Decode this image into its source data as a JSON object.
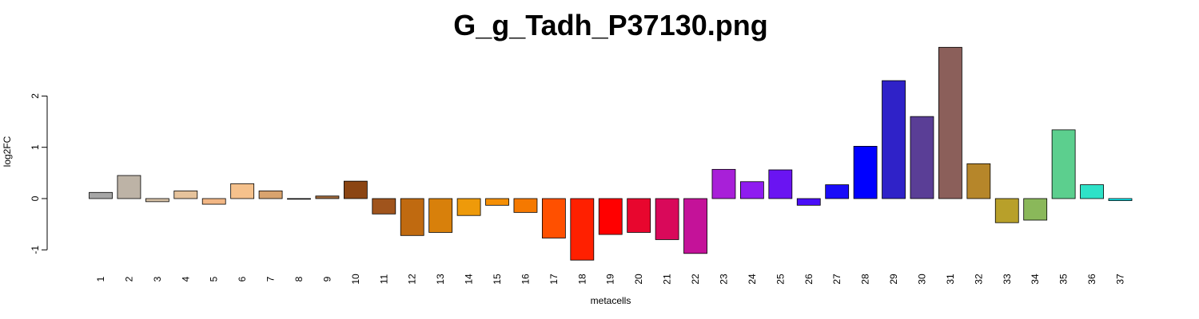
{
  "chart_data": {
    "type": "bar",
    "title": "G_g_Tadh_P37130.png",
    "xlabel": "metacells",
    "ylabel": "log2FC",
    "ylim": [
      -1.2,
      3.0
    ],
    "yticks": [
      -1,
      0,
      1,
      2
    ],
    "categories": [
      "1",
      "2",
      "3",
      "4",
      "5",
      "6",
      "7",
      "8",
      "9",
      "10",
      "11",
      "12",
      "13",
      "14",
      "15",
      "16",
      "17",
      "18",
      "19",
      "20",
      "21",
      "22",
      "23",
      "24",
      "25",
      "26",
      "27",
      "28",
      "29",
      "30",
      "31",
      "32",
      "33",
      "34",
      "35",
      "36",
      "37"
    ],
    "values": [
      0.12,
      0.45,
      -0.06,
      0.15,
      -0.11,
      0.29,
      0.15,
      -0.01,
      0.05,
      0.34,
      -0.3,
      -0.72,
      -0.66,
      -0.33,
      -0.13,
      -0.27,
      -0.77,
      -1.2,
      -0.7,
      -0.66,
      -0.8,
      -1.07,
      0.57,
      0.33,
      0.56,
      -0.13,
      0.27,
      1.02,
      2.3,
      1.6,
      2.95,
      0.68,
      -0.47,
      -0.42,
      1.34,
      0.27,
      -0.04
    ],
    "colors": [
      "#a6a6a6",
      "#bdb3a6",
      "#d7c2a6",
      "#e6c39c",
      "#f2b785",
      "#f5c18c",
      "#d9a36e",
      "#cfc4b8",
      "#a06a3c",
      "#8b4513",
      "#a0541c",
      "#c06a10",
      "#d8800b",
      "#ee9a0a",
      "#f58f04",
      "#f57900",
      "#ff5000",
      "#ff2000",
      "#ff0000",
      "#e8062e",
      "#d9095a",
      "#c41299",
      "#a820d8",
      "#8f1cf0",
      "#6a14f2",
      "#4a0ef8",
      "#1a0cf8",
      "#0000ff",
      "#2f22c8",
      "#5a3e96",
      "#8b5f5a",
      "#b6862a",
      "#b8a02a",
      "#8ab85a",
      "#5ccf8e",
      "#2ee2c8",
      "#10e8f0"
    ]
  }
}
